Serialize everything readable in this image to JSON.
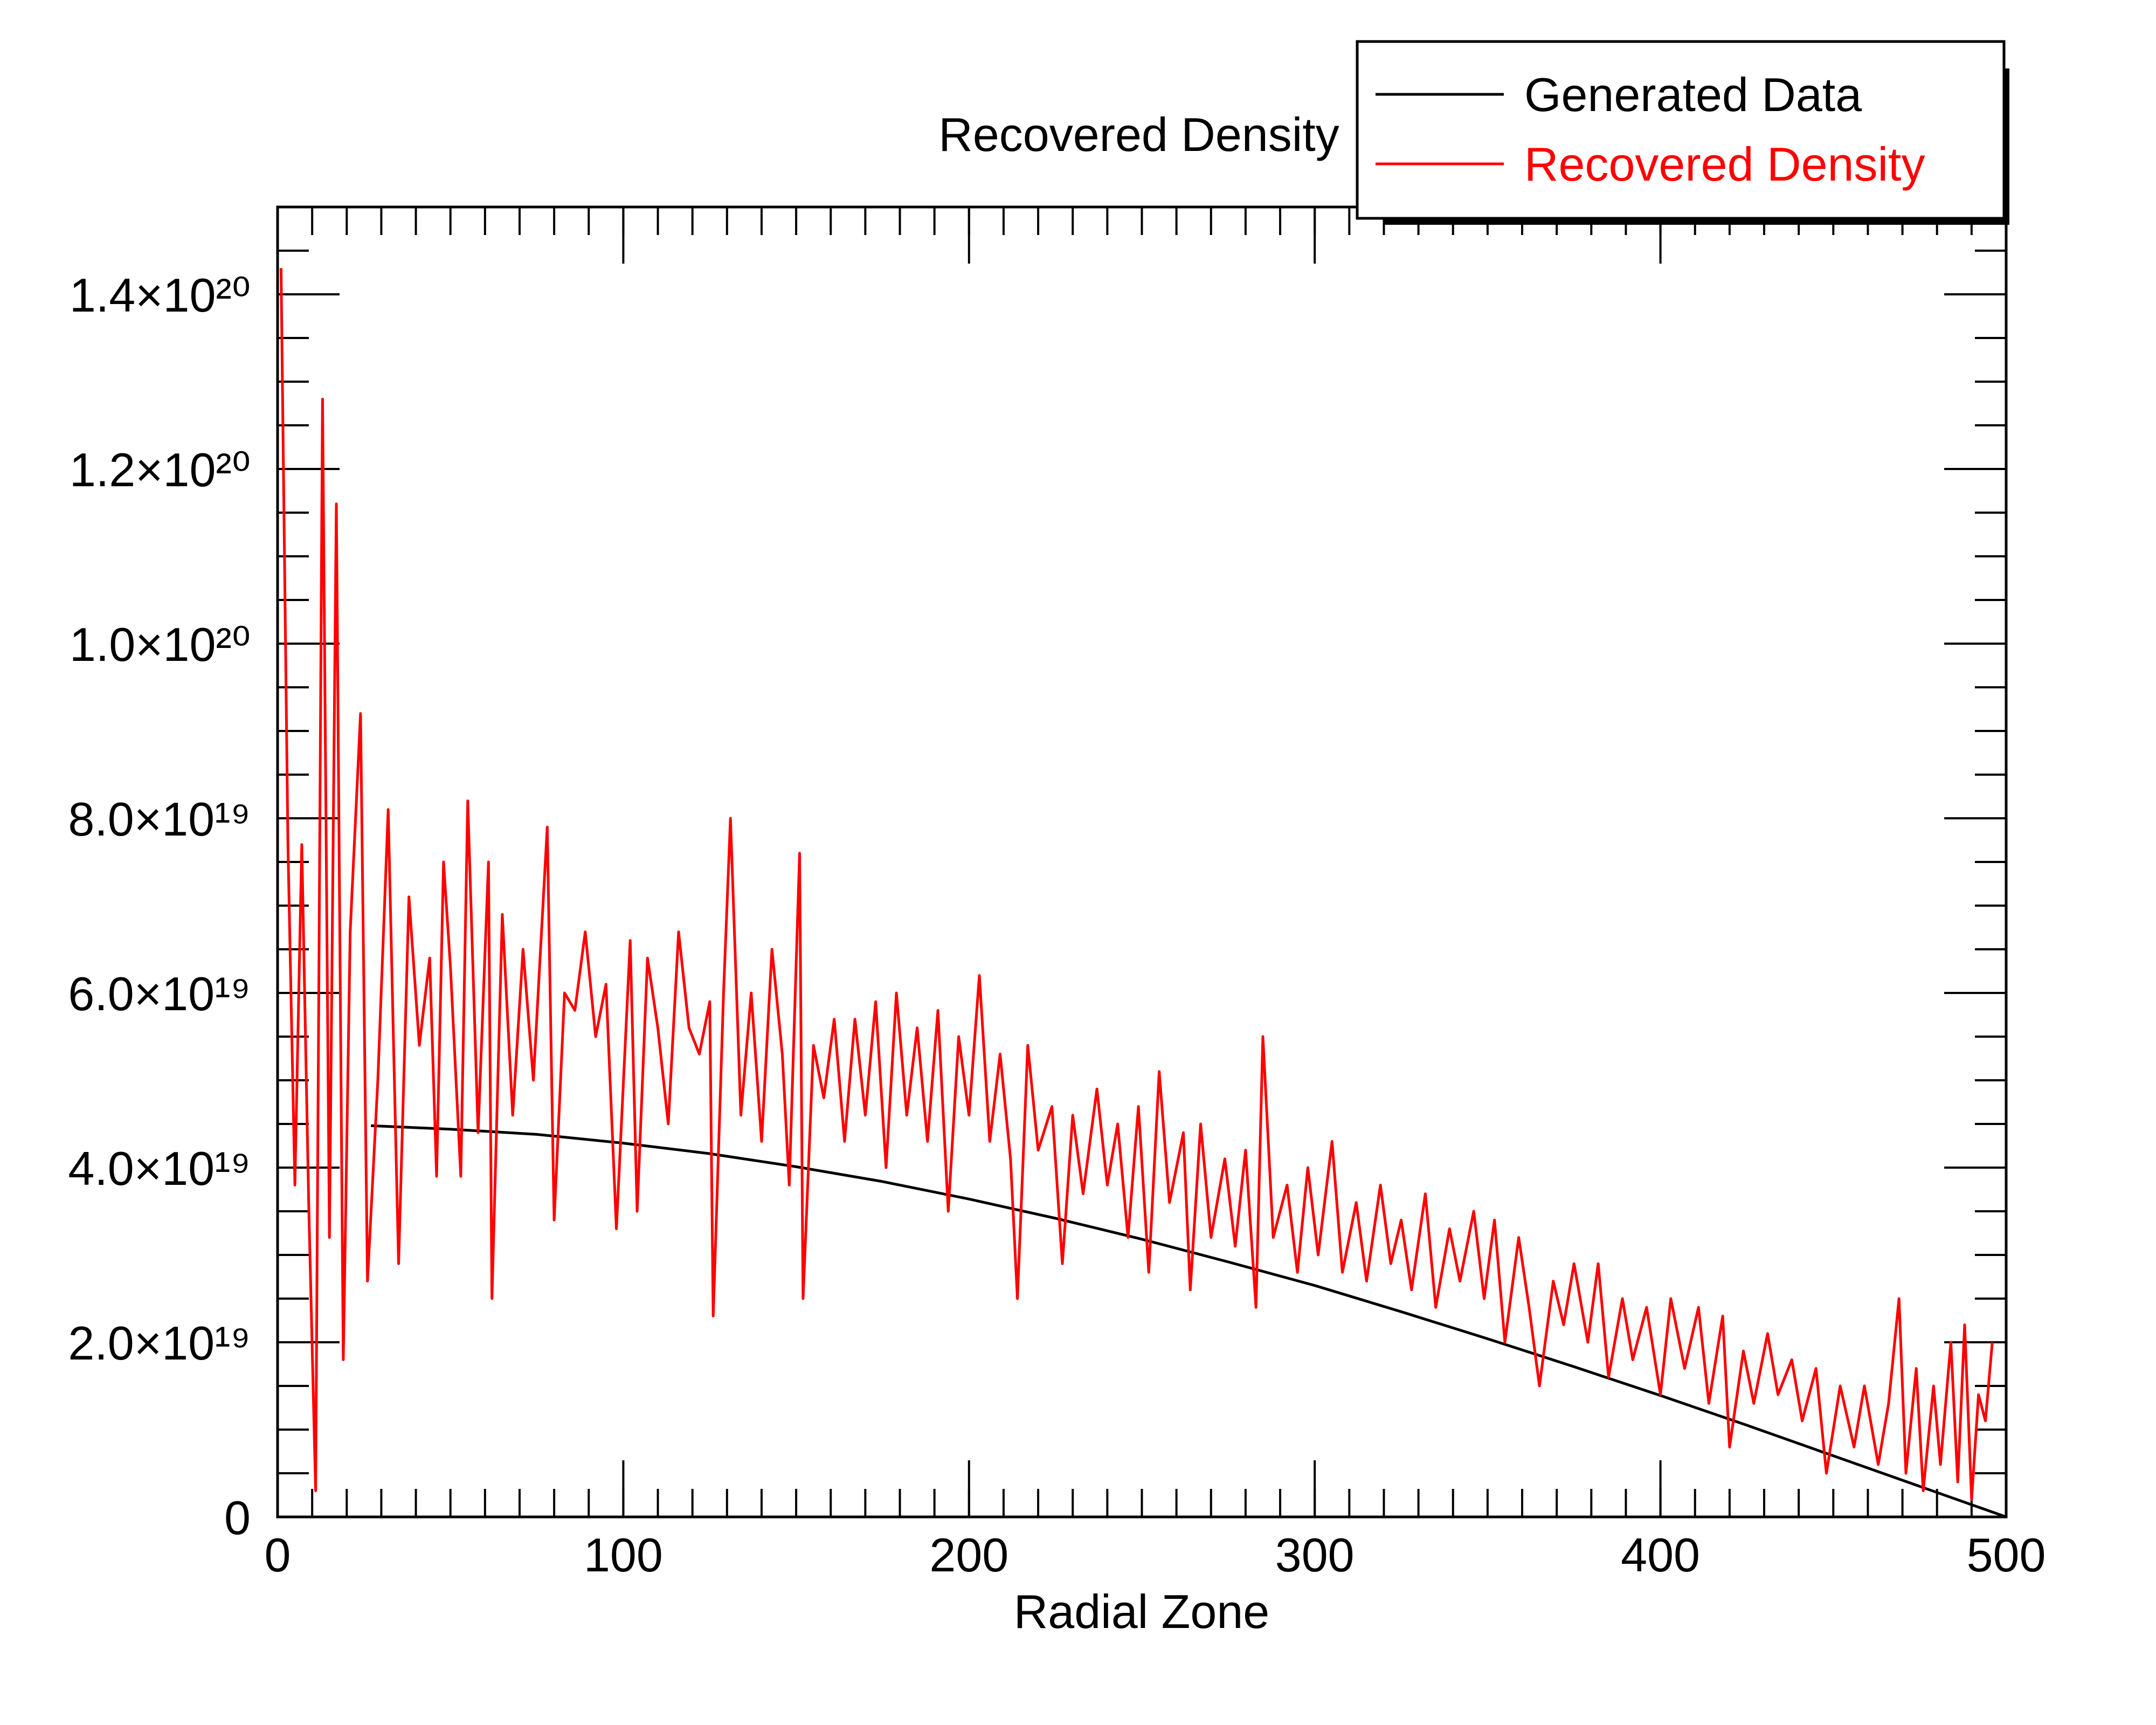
{
  "chart_data": {
    "type": "line",
    "title": "Recovered Density",
    "x_label": "Radial Zone",
    "xlim": [
      0,
      500
    ],
    "xticks": [
      0,
      100,
      200,
      300,
      400,
      500
    ],
    "ylim": [
      0,
      1.5e+20
    ],
    "yticks": [
      0,
      {
        "value": 2e+19,
        "label": "2.0×10¹⁹"
      },
      {
        "value": 4e+19,
        "label": "4.0×10¹⁹"
      },
      {
        "value": 6e+19,
        "label": "6.0×10¹⁹"
      },
      {
        "value": 8e+19,
        "label": "8.0×10¹⁹"
      },
      {
        "value": 1e+20,
        "label": "1.0×10²⁰"
      },
      {
        "value": 1.2e+20,
        "label": "1.2×10²⁰"
      },
      {
        "value": 1.4e+20,
        "label": "1.4×10²⁰"
      }
    ],
    "legend": "top-right",
    "series": [
      {
        "name": "Generated Data",
        "color": "#000000",
        "x": [
          27,
          50,
          75,
          100,
          125,
          150,
          175,
          200,
          225,
          250,
          275,
          300,
          325,
          350,
          375,
          400,
          425,
          450,
          475,
          500
        ],
        "values": [
          4.48e+19,
          4.44e+19,
          4.38e+19,
          4.28e+19,
          4.16e+19,
          4.01e+19,
          3.84e+19,
          3.64e+19,
          3.42e+19,
          3.18e+19,
          2.92e+19,
          2.65e+19,
          2.35e+19,
          2.04e+19,
          1.72e+19,
          1.39e+19,
          1.05e+19,
          7e+18,
          3.5e+18,
          0
        ]
      },
      {
        "name": "Recovered Density",
        "color": "#ff0000",
        "x": [
          1,
          3,
          5,
          7,
          9,
          11,
          13,
          15,
          17,
          19,
          21,
          24,
          26,
          29,
          32,
          35,
          38,
          41,
          44,
          46,
          48,
          50,
          53,
          55,
          58,
          61,
          62,
          65,
          68,
          71,
          74,
          78,
          80,
          83,
          86,
          89,
          92,
          95,
          98,
          102,
          104,
          107,
          110,
          113,
          116,
          119,
          122,
          125,
          126,
          129,
          131,
          134,
          137,
          140,
          143,
          146,
          148,
          151,
          152,
          155,
          158,
          161,
          164,
          167,
          170,
          173,
          176,
          179,
          182,
          185,
          188,
          191,
          194,
          197,
          200,
          203,
          206,
          209,
          212,
          214,
          217,
          220,
          224,
          227,
          230,
          233,
          237,
          240,
          243,
          246,
          249,
          252,
          255,
          258,
          262,
          264,
          267,
          270,
          274,
          277,
          280,
          283,
          285,
          288,
          292,
          295,
          298,
          301,
          305,
          308,
          312,
          315,
          319,
          322,
          325,
          328,
          332,
          335,
          339,
          342,
          346,
          349,
          352,
          355,
          359,
          362,
          365,
          369,
          372,
          375,
          379,
          382,
          385,
          389,
          392,
          396,
          400,
          403,
          407,
          411,
          414,
          418,
          420,
          424,
          427,
          431,
          434,
          438,
          441,
          445,
          448,
          452,
          456,
          459,
          463,
          466,
          469,
          471,
          474,
          476,
          479,
          481,
          484,
          486,
          488,
          490,
          492,
          494,
          496
        ],
        "values": [
          1.43e+20,
          7.7e+19,
          3.8e+19,
          7.7e+19,
          3.6e+19,
          3e+18,
          1.28e+20,
          3.2e+19,
          1.16e+20,
          1.8e+19,
          6.7e+19,
          9.2e+19,
          2.7e+19,
          5e+19,
          8.1e+19,
          2.9e+19,
          7.1e+19,
          5.4e+19,
          6.4e+19,
          3.9e+19,
          7.5e+19,
          6.3e+19,
          3.9e+19,
          8.2e+19,
          4.4e+19,
          7.5e+19,
          2.5e+19,
          6.9e+19,
          4.6e+19,
          6.5e+19,
          5e+19,
          7.9e+19,
          3.4e+19,
          6e+19,
          5.8e+19,
          6.7e+19,
          5.5e+19,
          6.1e+19,
          3.3e+19,
          6.6e+19,
          3.5e+19,
          6.4e+19,
          5.6e+19,
          4.5e+19,
          6.7e+19,
          5.6e+19,
          5.3e+19,
          5.9e+19,
          2.3e+19,
          6e+19,
          8e+19,
          4.6e+19,
          6e+19,
          4.3e+19,
          6.5e+19,
          5.3e+19,
          3.8e+19,
          7.6e+19,
          2.5e+19,
          5.4e+19,
          4.8e+19,
          5.7e+19,
          4.3e+19,
          5.7e+19,
          4.6e+19,
          5.9e+19,
          4e+19,
          6e+19,
          4.6e+19,
          5.6e+19,
          4.3e+19,
          5.8e+19,
          3.5e+19,
          5.5e+19,
          4.6e+19,
          6.2e+19,
          4.3e+19,
          5.3e+19,
          4.1e+19,
          2.5e+19,
          5.4e+19,
          4.2e+19,
          4.7e+19,
          2.9e+19,
          4.6e+19,
          3.7e+19,
          4.9e+19,
          3.8e+19,
          4.5e+19,
          3.2e+19,
          4.7e+19,
          2.8e+19,
          5.1e+19,
          3.6e+19,
          4.4e+19,
          2.6e+19,
          4.5e+19,
          3.2e+19,
          4.1e+19,
          3.1e+19,
          4.2e+19,
          2.4e+19,
          5.5e+19,
          3.2e+19,
          3.8e+19,
          2.8e+19,
          4e+19,
          3e+19,
          4.3e+19,
          2.8e+19,
          3.6e+19,
          2.7e+19,
          3.8e+19,
          2.9e+19,
          3.4e+19,
          2.6e+19,
          3.7e+19,
          2.4e+19,
          3.3e+19,
          2.7e+19,
          3.5e+19,
          2.5e+19,
          3.4e+19,
          2e+19,
          3.2e+19,
          2.4e+19,
          1.5e+19,
          2.7e+19,
          2.2e+19,
          2.9e+19,
          2e+19,
          2.9e+19,
          1.6e+19,
          2.5e+19,
          1.8e+19,
          2.4e+19,
          1.4e+19,
          2.5e+19,
          1.7e+19,
          2.4e+19,
          1.3e+19,
          2.3e+19,
          8e+18,
          1.9e+19,
          1.3e+19,
          2.1e+19,
          1.4e+19,
          1.8e+19,
          1.1e+19,
          1.7e+19,
          5e+18,
          1.5e+19,
          8e+18,
          1.5e+19,
          6e+18,
          1.3e+19,
          2.5e+19,
          5e+18,
          1.7e+19,
          3e+18,
          1.5e+19,
          6e+18,
          2e+19,
          4e+18,
          2.2e+19,
          2e+18,
          1.4e+19,
          1.1e+19,
          2e+19
        ]
      }
    ]
  }
}
